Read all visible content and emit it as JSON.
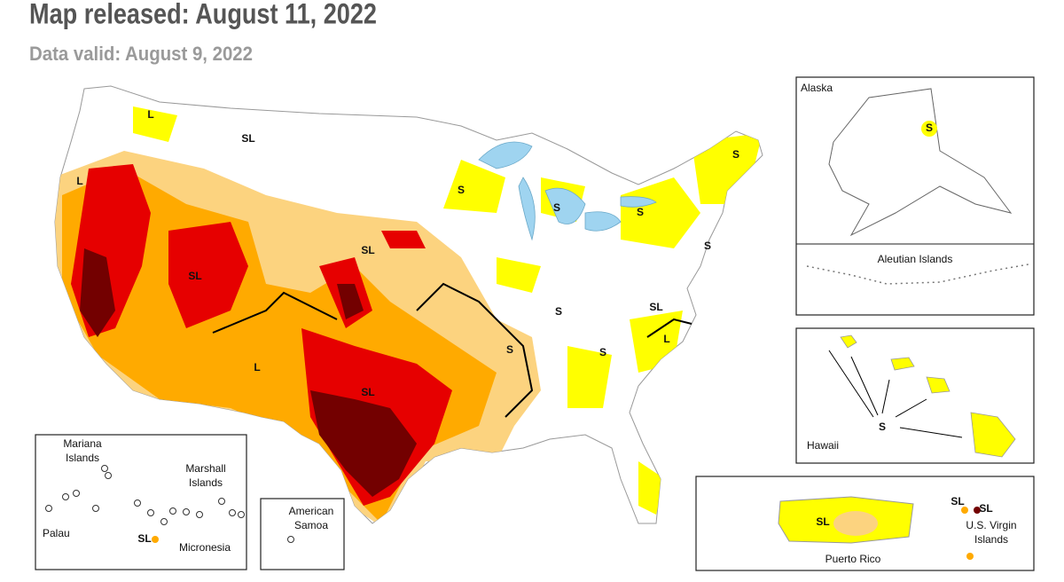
{
  "header": {
    "title": "Map released: August 11, 2022",
    "subtitle": "Data valid: August 9, 2022"
  },
  "map": {
    "impact_labels": [
      "L",
      "SL",
      "L",
      "S",
      "S",
      "S",
      "S",
      "SL",
      "SL",
      "S",
      "SL",
      "L",
      "S",
      "S",
      "L",
      "SL",
      "S"
    ]
  },
  "insets": {
    "alaska": {
      "label": "Alaska",
      "sub_label": "Aleutian Islands",
      "impact_label": "S"
    },
    "hawaii": {
      "label": "Hawaii",
      "impact_label": "S"
    },
    "pacific": {
      "labels": [
        "Mariana Islands",
        "Marshall Islands",
        "Palau",
        "Micronesia"
      ],
      "impact_label": "SL"
    },
    "samoa": {
      "label": "American Samoa"
    },
    "caribbean": {
      "labels": [
        "Puerto Rico",
        "U.S. Virgin Islands"
      ],
      "impact_labels": [
        "SL",
        "SL",
        "SL"
      ]
    }
  }
}
